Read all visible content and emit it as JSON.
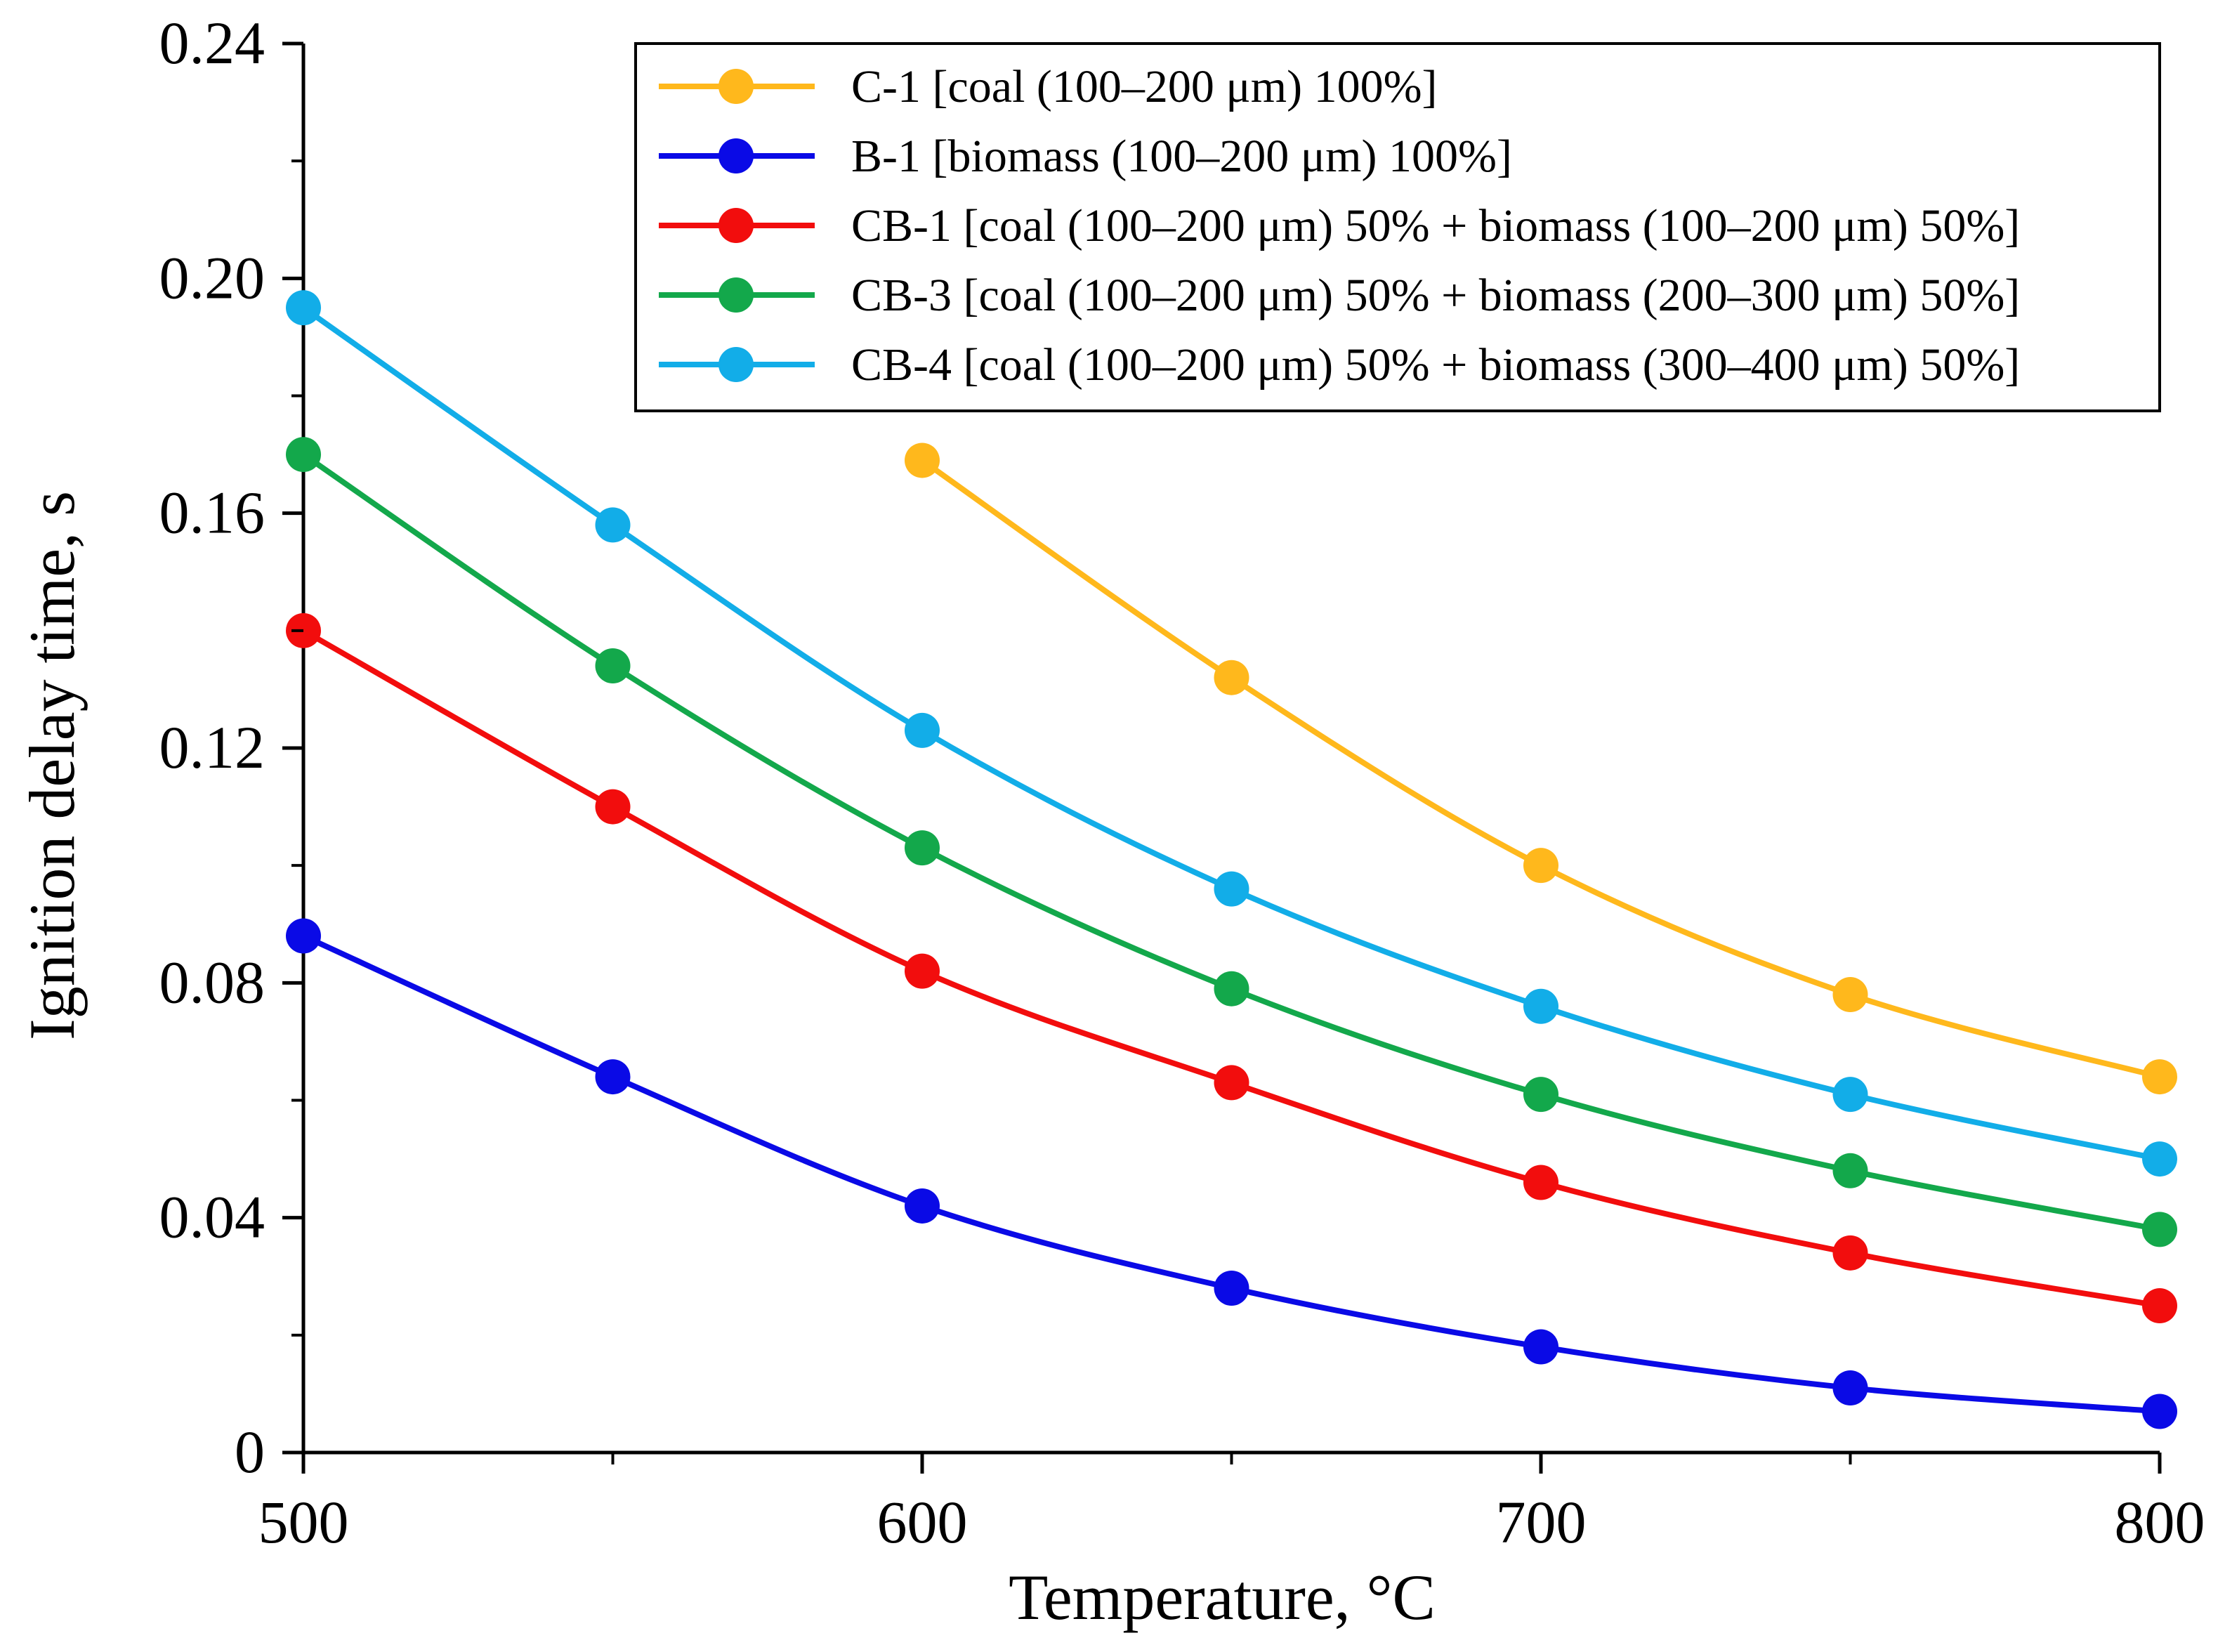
{
  "chart_data": {
    "type": "line",
    "title": "",
    "xlabel": "Temperature, °C",
    "ylabel": "Ignition delay time, s",
    "xlim": [
      500,
      800
    ],
    "ylim": [
      0,
      0.24
    ],
    "x_ticks": [
      "500",
      "600",
      "700",
      "800"
    ],
    "y_ticks": [
      "0",
      "0.04",
      "0.08",
      "0.12",
      "0.16",
      "0.20",
      "0.24"
    ],
    "x_tick_values": [
      500,
      600,
      700,
      800
    ],
    "y_tick_values": [
      0,
      0.04,
      0.08,
      0.12,
      0.16,
      0.2,
      0.24
    ],
    "x_minor_tick_values": [
      550,
      650,
      750
    ],
    "y_minor_tick_values": [
      0.02,
      0.06,
      0.1,
      0.14,
      0.18,
      0.22
    ],
    "grid": false,
    "legend_position": "top-right",
    "series": [
      {
        "name": "C-1 [coal (100–200 μm) 100%]",
        "color": "#FFB81C",
        "x": [
          600,
          650,
          700,
          750,
          800
        ],
        "y": [
          0.169,
          0.132,
          0.1,
          0.078,
          0.064
        ]
      },
      {
        "name": "B-1 [biomass (100–200 μm) 100%]",
        "color": "#0A0AE6",
        "x": [
          500,
          550,
          600,
          650,
          700,
          750,
          800
        ],
        "y": [
          0.088,
          0.064,
          0.042,
          0.028,
          0.018,
          0.011,
          0.007
        ]
      },
      {
        "name": "CB-1 [coal (100–200 μm) 50% + biomass (100–200 μm) 50%]",
        "color": "#F20D0D",
        "x": [
          500,
          550,
          600,
          650,
          700,
          750,
          800
        ],
        "y": [
          0.14,
          0.11,
          0.082,
          0.063,
          0.046,
          0.034,
          0.025
        ]
      },
      {
        "name": "CB-3 [coal (100–200 μm) 50% + biomass (200–300 μm) 50%]",
        "color": "#13A84B",
        "x": [
          500,
          550,
          600,
          650,
          700,
          750,
          800
        ],
        "y": [
          0.17,
          0.134,
          0.103,
          0.079,
          0.061,
          0.048,
          0.038
        ]
      },
      {
        "name": "CB-4 [coal (100–200 μm) 50% + biomass (300–400 μm) 50%]",
        "color": "#12ADE8",
        "x": [
          500,
          550,
          600,
          650,
          700,
          750,
          800
        ],
        "y": [
          0.195,
          0.158,
          0.123,
          0.096,
          0.076,
          0.061,
          0.05
        ]
      }
    ]
  }
}
